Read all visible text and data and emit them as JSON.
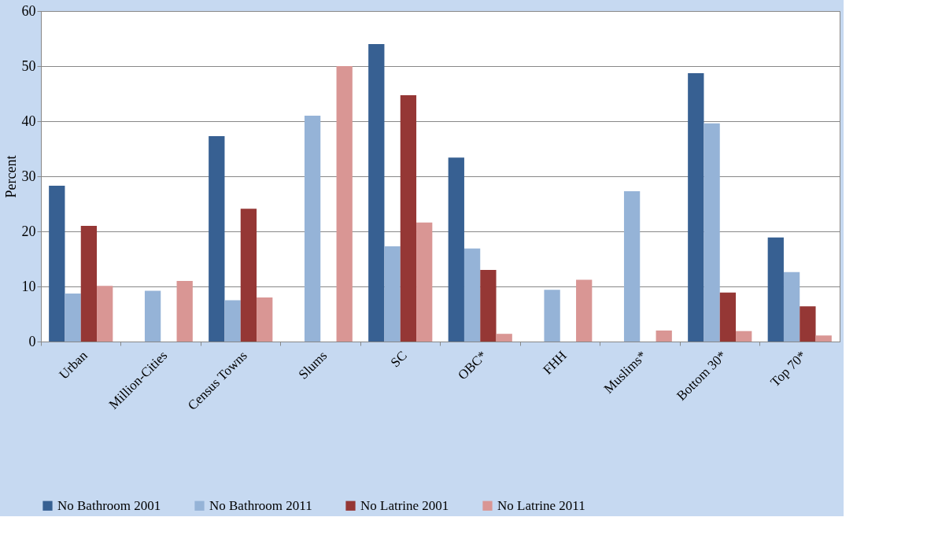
{
  "chart_data": {
    "type": "bar",
    "ylabel": "Percent",
    "categories": [
      "Urban",
      "Million-Cities",
      "Census Towns",
      "Slums",
      "SC",
      "OBC*",
      "FHH",
      "Muslims*",
      "Bottom 30*",
      "Top 70*"
    ],
    "series": [
      {
        "name": "No Bathroom 2001",
        "color": "#376092",
        "values": [
          28.3,
          null,
          37.3,
          null,
          54,
          33.4,
          null,
          null,
          48.7,
          18.9
        ]
      },
      {
        "name": "No Bathroom 2011",
        "color": "#95b3d7",
        "values": [
          8.7,
          9.2,
          7.5,
          41,
          17.3,
          16.9,
          9.4,
          27.3,
          39.6,
          12.6
        ]
      },
      {
        "name": "No Latrine 2001",
        "color": "#953735",
        "values": [
          21,
          null,
          24.1,
          null,
          44.7,
          13,
          null,
          null,
          8.9,
          6.4
        ]
      },
      {
        "name": "No Latrine 2011",
        "color": "#d99694",
        "values": [
          10.1,
          11,
          8,
          50,
          21.6,
          1.4,
          11.2,
          2,
          1.9,
          1.1
        ]
      }
    ],
    "ylim": [
      0,
      60
    ],
    "yticks": [
      0,
      10,
      20,
      30,
      40,
      50,
      60
    ],
    "grid": "y",
    "legend": "bottom"
  }
}
